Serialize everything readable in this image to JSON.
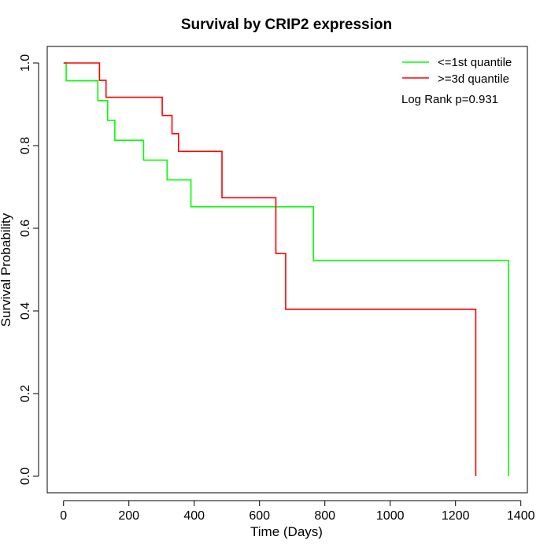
{
  "chart_data": {
    "type": "line",
    "title": "Survival by CRIP2 expression",
    "xlabel": "Time (Days)",
    "ylabel": "Survival Probability",
    "xlim": [
      -50,
      1420
    ],
    "ylim": [
      -0.04,
      1.04
    ],
    "x_ticks": [
      0,
      200,
      400,
      600,
      800,
      1000,
      1200,
      1400
    ],
    "y_ticks": [
      0.0,
      0.2,
      0.4,
      0.6,
      0.8,
      1.0
    ],
    "x_tick_labels": [
      "0",
      "200",
      "400",
      "600",
      "800",
      "1000",
      "1200",
      "1400"
    ],
    "y_tick_labels": [
      "0.0",
      "0.2",
      "0.4",
      "0.6",
      "0.8",
      "1.0"
    ],
    "grid": false,
    "legend_position": "top-right",
    "annotation": "Log Rank p=0.931",
    "series": [
      {
        "name": "<=1st quantile",
        "color": "#00ff00",
        "steps": [
          [
            0,
            1.0
          ],
          [
            8,
            0.957
          ],
          [
            105,
            0.909
          ],
          [
            135,
            0.861
          ],
          [
            157,
            0.813
          ],
          [
            245,
            0.765
          ],
          [
            317,
            0.717
          ],
          [
            390,
            0.652
          ],
          [
            765,
            0.522
          ],
          [
            1362,
            0.0
          ]
        ]
      },
      {
        "name": ">=3d quantile",
        "color": "#ff0000",
        "steps": [
          [
            0,
            1.0
          ],
          [
            110,
            0.958
          ],
          [
            130,
            0.917
          ],
          [
            302,
            0.873
          ],
          [
            332,
            0.829
          ],
          [
            352,
            0.786
          ],
          [
            485,
            0.674
          ],
          [
            650,
            0.539
          ],
          [
            680,
            0.404
          ],
          [
            1262,
            0.0
          ]
        ]
      }
    ]
  }
}
